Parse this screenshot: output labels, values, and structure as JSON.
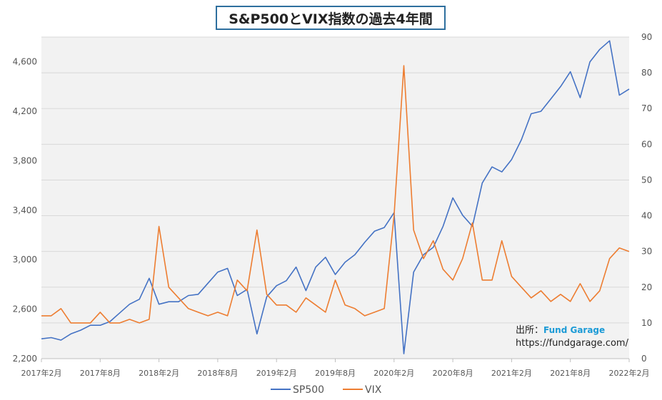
{
  "title": "S&P500とVIX指数の過去4年間",
  "source": {
    "prefix": "出所：",
    "brand": "Fund Garage",
    "url": "https://fundgarage.com/"
  },
  "chart_data": {
    "type": "line",
    "title": "S&P500とVIX指数の過去4年間",
    "x_tick_labels": [
      "2017年2月",
      "2017年8月",
      "2018年2月",
      "2018年8月",
      "2019年2月",
      "2019年8月",
      "2020年2月",
      "2020年8月",
      "2021年2月",
      "2021年8月",
      "2022年2月"
    ],
    "y_left": {
      "ticks": [
        2200,
        2600,
        3000,
        3400,
        3800,
        4200,
        4600
      ],
      "tick_labels": [
        "2,200",
        "2,600",
        "3,000",
        "3,400",
        "3,800",
        "4,200",
        "4,600"
      ],
      "range": [
        2200,
        4800
      ]
    },
    "y_right": {
      "ticks": [
        0,
        10,
        20,
        30,
        40,
        50,
        60,
        70,
        80,
        90
      ],
      "tick_labels": [
        "0",
        "10",
        "20",
        "30",
        "40",
        "50",
        "60",
        "70",
        "80",
        "90"
      ],
      "range": [
        0,
        90
      ]
    },
    "grid": "horizontal",
    "legend": "bottom",
    "series": [
      {
        "name": "SP500",
        "axis": "left",
        "color": "#4472c4",
        "points": [
          [
            "2017-02",
            2360
          ],
          [
            "2017-03",
            2370
          ],
          [
            "2017-04",
            2350
          ],
          [
            "2017-05",
            2400
          ],
          [
            "2017-06",
            2430
          ],
          [
            "2017-07",
            2470
          ],
          [
            "2017-08",
            2470
          ],
          [
            "2017-09",
            2500
          ],
          [
            "2017-10",
            2570
          ],
          [
            "2017-11",
            2640
          ],
          [
            "2017-12",
            2680
          ],
          [
            "2018-01",
            2850
          ],
          [
            "2018-02",
            2640
          ],
          [
            "2018-03",
            2660
          ],
          [
            "2018-04",
            2660
          ],
          [
            "2018-05",
            2710
          ],
          [
            "2018-06",
            2720
          ],
          [
            "2018-07",
            2810
          ],
          [
            "2018-08",
            2900
          ],
          [
            "2018-09",
            2930
          ],
          [
            "2018-10",
            2710
          ],
          [
            "2018-11",
            2760
          ],
          [
            "2018-12",
            2400
          ],
          [
            "2019-01",
            2700
          ],
          [
            "2019-02",
            2790
          ],
          [
            "2019-03",
            2830
          ],
          [
            "2019-04",
            2940
          ],
          [
            "2019-05",
            2750
          ],
          [
            "2019-06",
            2940
          ],
          [
            "2019-07",
            3020
          ],
          [
            "2019-08",
            2880
          ],
          [
            "2019-09",
            2980
          ],
          [
            "2019-10",
            3040
          ],
          [
            "2019-11",
            3140
          ],
          [
            "2019-12",
            3230
          ],
          [
            "2020-01",
            3260
          ],
          [
            "2020-02",
            3380
          ],
          [
            "2020-03",
            2240
          ],
          [
            "2020-04",
            2900
          ],
          [
            "2020-05",
            3040
          ],
          [
            "2020-06",
            3100
          ],
          [
            "2020-07",
            3270
          ],
          [
            "2020-08",
            3500
          ],
          [
            "2020-09",
            3360
          ],
          [
            "2020-10",
            3270
          ],
          [
            "2020-11",
            3620
          ],
          [
            "2020-12",
            3750
          ],
          [
            "2021-01",
            3710
          ],
          [
            "2021-02",
            3810
          ],
          [
            "2021-03",
            3970
          ],
          [
            "2021-04",
            4180
          ],
          [
            "2021-05",
            4200
          ],
          [
            "2021-06",
            4300
          ],
          [
            "2021-07",
            4400
          ],
          [
            "2021-08",
            4520
          ],
          [
            "2021-09",
            4310
          ],
          [
            "2021-10",
            4600
          ],
          [
            "2021-11",
            4700
          ],
          [
            "2021-12",
            4770
          ],
          [
            "2022-01",
            4330
          ],
          [
            "2022-02",
            4380
          ]
        ]
      },
      {
        "name": "VIX",
        "axis": "right",
        "color": "#ed7d31",
        "points": [
          [
            "2017-02",
            12
          ],
          [
            "2017-03",
            12
          ],
          [
            "2017-04",
            14
          ],
          [
            "2017-05",
            10
          ],
          [
            "2017-06",
            10
          ],
          [
            "2017-07",
            10
          ],
          [
            "2017-08",
            13
          ],
          [
            "2017-09",
            10
          ],
          [
            "2017-10",
            10
          ],
          [
            "2017-11",
            11
          ],
          [
            "2017-12",
            10
          ],
          [
            "2018-01",
            11
          ],
          [
            "2018-02",
            37
          ],
          [
            "2018-03",
            20
          ],
          [
            "2018-04",
            17
          ],
          [
            "2018-05",
            14
          ],
          [
            "2018-06",
            13
          ],
          [
            "2018-07",
            12
          ],
          [
            "2018-08",
            13
          ],
          [
            "2018-09",
            12
          ],
          [
            "2018-10",
            22
          ],
          [
            "2018-11",
            19
          ],
          [
            "2018-12",
            36
          ],
          [
            "2019-01",
            18
          ],
          [
            "2019-02",
            15
          ],
          [
            "2019-03",
            15
          ],
          [
            "2019-04",
            13
          ],
          [
            "2019-05",
            17
          ],
          [
            "2019-06",
            15
          ],
          [
            "2019-07",
            13
          ],
          [
            "2019-08",
            22
          ],
          [
            "2019-09",
            15
          ],
          [
            "2019-10",
            14
          ],
          [
            "2019-11",
            12
          ],
          [
            "2019-12",
            13
          ],
          [
            "2020-01",
            14
          ],
          [
            "2020-02",
            40
          ],
          [
            "2020-03",
            82
          ],
          [
            "2020-04",
            36
          ],
          [
            "2020-05",
            28
          ],
          [
            "2020-06",
            33
          ],
          [
            "2020-07",
            25
          ],
          [
            "2020-08",
            22
          ],
          [
            "2020-09",
            28
          ],
          [
            "2020-10",
            38
          ],
          [
            "2020-11",
            22
          ],
          [
            "2020-12",
            22
          ],
          [
            "2021-01",
            33
          ],
          [
            "2021-02",
            23
          ],
          [
            "2021-03",
            20
          ],
          [
            "2021-04",
            17
          ],
          [
            "2021-05",
            19
          ],
          [
            "2021-06",
            16
          ],
          [
            "2021-07",
            18
          ],
          [
            "2021-08",
            16
          ],
          [
            "2021-09",
            21
          ],
          [
            "2021-10",
            16
          ],
          [
            "2021-11",
            19
          ],
          [
            "2021-12",
            28
          ],
          [
            "2022-01",
            31
          ],
          [
            "2022-02",
            30
          ]
        ]
      }
    ]
  }
}
